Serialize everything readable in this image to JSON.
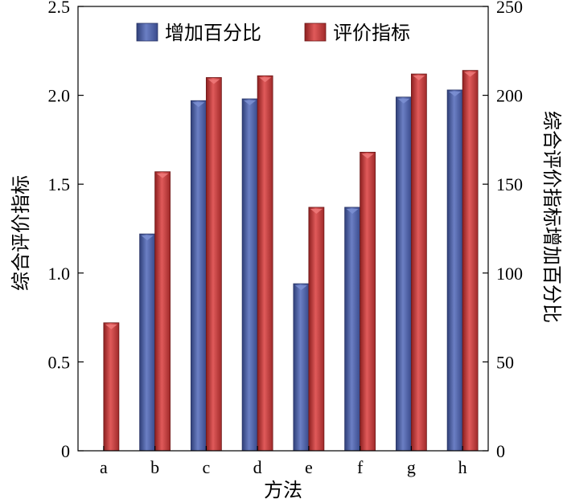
{
  "chart_data": {
    "type": "bar",
    "categories": [
      "a",
      "b",
      "c",
      "d",
      "e",
      "f",
      "g",
      "h"
    ],
    "series": [
      {
        "name": "增加百分比",
        "axis": "right",
        "color": "#4a5fa6",
        "values": [
          null,
          122,
          197,
          198,
          94,
          137,
          199,
          203
        ]
      },
      {
        "name": "评价指标",
        "axis": "left",
        "color": "#c03a3a",
        "values": [
          0.72,
          1.57,
          2.1,
          2.11,
          1.37,
          1.68,
          2.12,
          2.14
        ]
      }
    ],
    "xlabel": "方法",
    "ylabel_left": "综合评价指标",
    "ylabel_right": "综合评价指标增加百分比",
    "ylim_left": [
      0,
      2.5
    ],
    "ylim_right": [
      0,
      250
    ],
    "yticks_left": [
      "0",
      "0.5",
      "1.0",
      "1.5",
      "2.0",
      "2.5"
    ],
    "yticks_right": [
      "0",
      "50",
      "100",
      "150",
      "200",
      "250"
    ],
    "legend_position": "top-center",
    "grid": false
  }
}
